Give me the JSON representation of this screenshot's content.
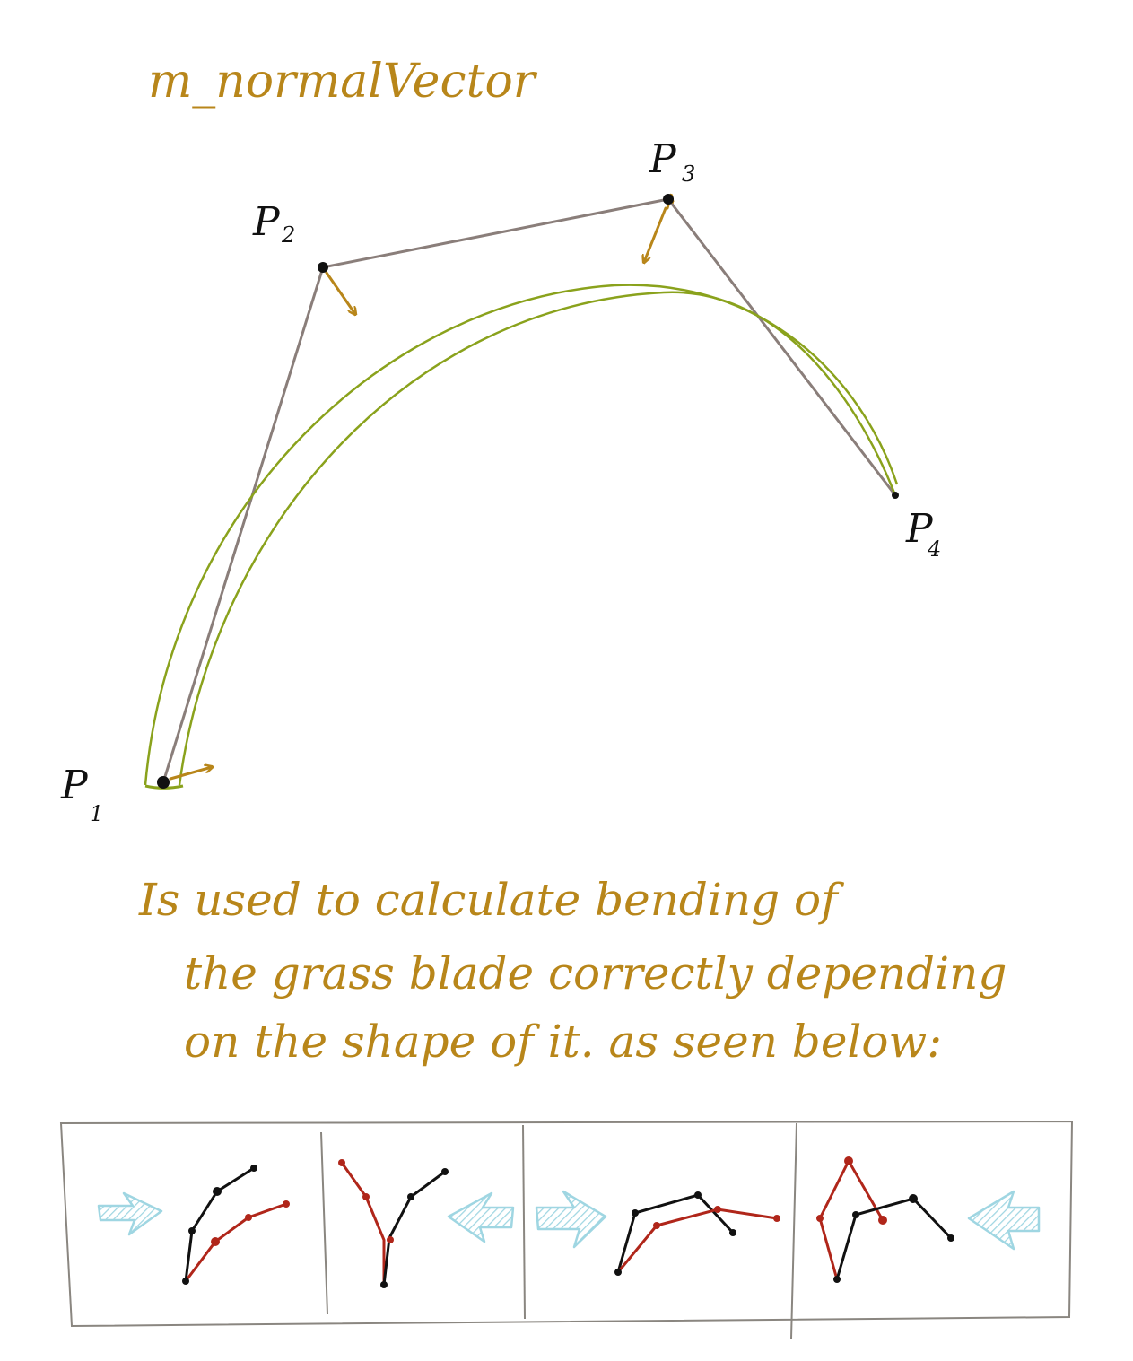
{
  "diagram": {
    "title": "m_normalVector",
    "points": [
      {
        "letter": "P",
        "sub": "1"
      },
      {
        "letter": "P",
        "sub": "2"
      },
      {
        "letter": "P",
        "sub": "3"
      },
      {
        "letter": "P",
        "sub": "4"
      }
    ],
    "description": [
      "Is used to calculate bending of",
      "the grass blade correctly depending",
      "on the shape of it. as seen below:"
    ],
    "colors": {
      "curve": "#8aa21c",
      "polygon": "#8a7e7a",
      "normal_arrow": "#b8861a",
      "title_text": "#b8861a",
      "label_text": "#111111",
      "panel_border": "#8a8680",
      "force_arrow": "#9fd6e2",
      "original_shape": "#111111",
      "bent_shape": "#b0261a"
    },
    "panels": [
      {
        "force_direction": "right"
      },
      {
        "force_direction": "left"
      },
      {
        "force_direction": "right"
      },
      {
        "force_direction": "left"
      }
    ]
  }
}
